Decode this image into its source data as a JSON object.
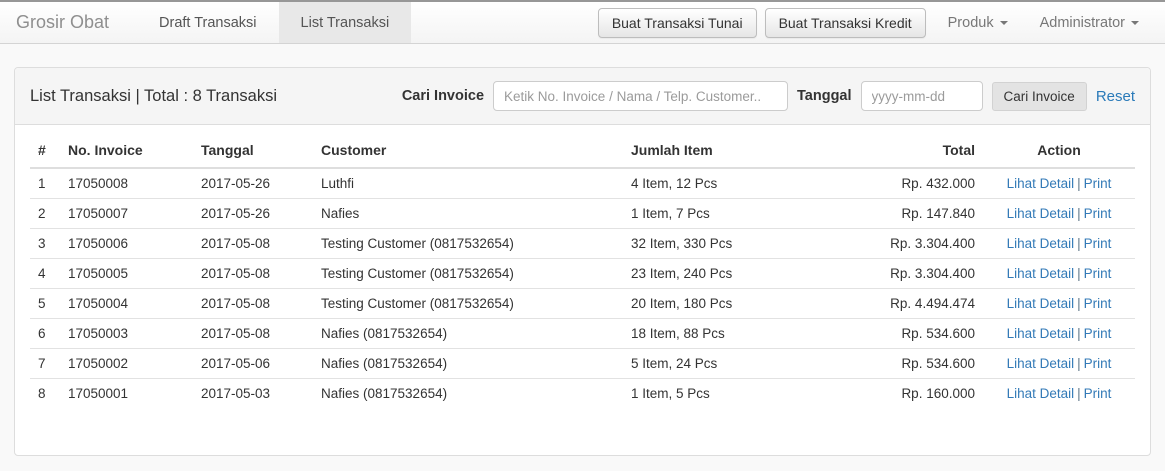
{
  "navbar": {
    "brand": "Grosir Obat",
    "nav": [
      {
        "label": "Draft Transaksi",
        "active": false
      },
      {
        "label": "List Transaksi",
        "active": true
      }
    ],
    "buttons": {
      "tunai": "Buat Transaksi Tunai",
      "kredit": "Buat Transaksi Kredit"
    },
    "dropdowns": {
      "produk": "Produk",
      "administrator": "Administrator"
    }
  },
  "panel": {
    "title": "List Transaksi | Total : 8 Transaksi",
    "search": {
      "invoice_label": "Cari Invoice",
      "invoice_placeholder": "Ketik No. Invoice / Nama / Telp. Customer..",
      "date_label": "Tanggal",
      "date_placeholder": "yyyy-mm-dd",
      "search_button": "Cari Invoice",
      "reset_label": "Reset"
    },
    "table": {
      "headers": [
        "#",
        "No. Invoice",
        "Tanggal",
        "Customer",
        "Jumlah Item",
        "Total",
        "Action"
      ],
      "action": {
        "detail": "Lihat Detail",
        "separator": "|",
        "print": "Print"
      },
      "rows": [
        {
          "no": "1",
          "invoice": "17050008",
          "date": "2017-05-26",
          "customer": "Luthfi",
          "items": "4 Item, 12 Pcs",
          "total": "Rp. 432.000"
        },
        {
          "no": "2",
          "invoice": "17050007",
          "date": "2017-05-26",
          "customer": "Nafies",
          "items": "1 Item, 7 Pcs",
          "total": "Rp. 147.840"
        },
        {
          "no": "3",
          "invoice": "17050006",
          "date": "2017-05-08",
          "customer": "Testing Customer (0817532654)",
          "items": "32 Item, 330 Pcs",
          "total": "Rp. 3.304.400"
        },
        {
          "no": "4",
          "invoice": "17050005",
          "date": "2017-05-08",
          "customer": "Testing Customer (0817532654)",
          "items": "23 Item, 240 Pcs",
          "total": "Rp. 3.304.400"
        },
        {
          "no": "5",
          "invoice": "17050004",
          "date": "2017-05-08",
          "customer": "Testing Customer (0817532654)",
          "items": "20 Item, 180 Pcs",
          "total": "Rp. 4.494.474"
        },
        {
          "no": "6",
          "invoice": "17050003",
          "date": "2017-05-08",
          "customer": "Nafies (0817532654)",
          "items": "18 Item, 88 Pcs",
          "total": "Rp. 534.600"
        },
        {
          "no": "7",
          "invoice": "17050002",
          "date": "2017-05-06",
          "customer": "Nafies (0817532654)",
          "items": "5 Item, 24 Pcs",
          "total": "Rp. 534.600"
        },
        {
          "no": "8",
          "invoice": "17050001",
          "date": "2017-05-03",
          "customer": "Nafies (0817532654)",
          "items": "1 Item, 5 Pcs",
          "total": "Rp. 160.000"
        }
      ]
    }
  },
  "colors": {
    "link": "#337ab7",
    "panel_heading_bg": "#f5f5f5",
    "active_tab_bg": "#e8e8e8",
    "navbar_border": "#d4d4d4"
  }
}
